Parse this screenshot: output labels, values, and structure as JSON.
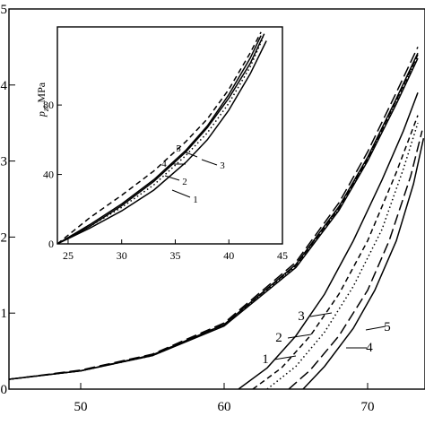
{
  "chart_data": [
    {
      "type": "line",
      "panel": "main",
      "xlim": [
        45,
        74
      ],
      "ylim": [
        0,
        5
      ],
      "x_ticks": [
        50,
        60,
        70
      ],
      "y_ticks": [
        0,
        1,
        2,
        3,
        4,
        5
      ],
      "x_tick_labels": [
        "50",
        "60",
        "70"
      ],
      "y_tick_labels": [
        "0",
        "1",
        "2",
        "3",
        "4",
        "5"
      ],
      "xlabel": "",
      "ylabel": "",
      "series": [
        {
          "label": "1",
          "style": "solid",
          "branch_a": {
            "x": [
              45,
              50,
              55,
              60,
              65,
              68,
              70,
              72,
              73.5
            ],
            "y": [
              0.13,
              0.24,
              0.44,
              0.83,
              1.6,
              2.35,
              3.0,
              3.75,
              4.35
            ]
          },
          "branch_b": {
            "x": [
              61.0,
              63,
              65,
              67,
              69,
              71,
              72.5,
              73.5
            ],
            "y": [
              0.0,
              0.28,
              0.7,
              1.25,
              1.95,
              2.75,
              3.4,
              3.9
            ]
          }
        },
        {
          "label": "2",
          "style": "short-dash",
          "branch_a": {
            "x": [
              45,
              50,
              55,
              60,
              65,
              68,
              70,
              72,
              73.5
            ],
            "y": [
              0.13,
              0.24,
              0.45,
              0.85,
              1.63,
              2.38,
              3.03,
              3.8,
              4.4
            ]
          },
          "branch_b": {
            "x": [
              62.0,
              64,
              66,
              68,
              70,
              72,
              73.5
            ],
            "y": [
              0.0,
              0.28,
              0.7,
              1.25,
              1.95,
              2.85,
              3.6
            ]
          }
        },
        {
          "label": "3",
          "style": "dot",
          "branch_a": {
            "x": [
              45,
              50,
              55,
              60,
              65,
              68,
              70,
              72,
              73.5
            ],
            "y": [
              0.13,
              0.24,
              0.44,
              0.84,
              1.62,
              2.37,
              3.02,
              3.78,
              4.38
            ]
          },
          "branch_b": {
            "x": [
              63.0,
              65,
              67,
              69,
              71,
              72.5,
              73.5
            ],
            "y": [
              0.0,
              0.3,
              0.75,
              1.35,
              2.1,
              2.9,
              3.5
            ]
          }
        },
        {
          "label": "4",
          "style": "long-dash",
          "branch_a": {
            "x": [
              45,
              50,
              55,
              60,
              65,
              68,
              70,
              72,
              73.5
            ],
            "y": [
              0.13,
              0.25,
              0.46,
              0.87,
              1.67,
              2.45,
              3.12,
              3.9,
              4.5
            ]
          },
          "branch_b": {
            "x": [
              64.5,
              66,
              68,
              70,
              71.5,
              73,
              73.8
            ],
            "y": [
              0.0,
              0.25,
              0.7,
              1.3,
              1.95,
              2.8,
              3.4
            ]
          }
        },
        {
          "label": "5",
          "style": "solid",
          "branch_a": {
            "x": [
              45,
              50,
              55,
              60,
              65,
              68,
              70,
              72,
              73.5
            ],
            "y": [
              0.13,
              0.24,
              0.45,
              0.85,
              1.64,
              2.4,
              3.05,
              3.82,
              4.42
            ]
          },
          "branch_b": {
            "x": [
              65.5,
              67,
              69,
              70.5,
              72,
              73.2,
              73.9
            ],
            "y": [
              0.0,
              0.3,
              0.8,
              1.3,
              1.95,
              2.7,
              3.3
            ]
          }
        }
      ]
    },
    {
      "type": "line",
      "panel": "inset",
      "xlim": [
        24,
        45
      ],
      "ylim": [
        0,
        125
      ],
      "x_ticks": [
        25,
        30,
        35,
        40,
        45
      ],
      "y_ticks": [
        0,
        40,
        80
      ],
      "x_tick_labels": [
        "25",
        "30",
        "35",
        "40",
        "45"
      ],
      "y_tick_labels": [
        "0",
        "40",
        "80"
      ],
      "xlabel": "",
      "ylabel": "p_z , MPa",
      "ylabel_main": "p",
      "ylabel_sub": "z",
      "ylabel_unit": ", MPa",
      "series": [
        {
          "label": "1",
          "style": "solid",
          "x": [
            24,
            27,
            30,
            33,
            36,
            38,
            40,
            42,
            43.5
          ],
          "y": [
            0,
            9,
            19,
            31,
            47,
            60,
            77,
            98,
            117
          ]
        },
        {
          "label": "2",
          "style": "dot",
          "x": [
            24,
            27,
            30,
            33,
            36,
            38,
            40,
            42,
            43.2
          ],
          "y": [
            0,
            10,
            21,
            34,
            51,
            64,
            81,
            102,
            119
          ]
        },
        {
          "label": "3",
          "style": "solid",
          "x": [
            24,
            27,
            30,
            33,
            36,
            38,
            40,
            42,
            43.0
          ],
          "y": [
            0,
            11,
            23,
            37,
            54,
            68,
            86,
            107,
            120
          ]
        },
        {
          "label": "4",
          "style": "short-dash",
          "x": [
            24,
            27,
            30,
            33,
            36,
            38,
            40,
            42,
            43.0
          ],
          "y": [
            0,
            15,
            28,
            42,
            59,
            72,
            89,
            110,
            122
          ]
        },
        {
          "label": "5",
          "style": "solid",
          "x": [
            24,
            27,
            30,
            33,
            36,
            38,
            40,
            42,
            43.3
          ],
          "y": [
            0,
            10,
            22,
            36,
            53,
            67,
            84,
            104,
            121
          ]
        }
      ]
    }
  ]
}
